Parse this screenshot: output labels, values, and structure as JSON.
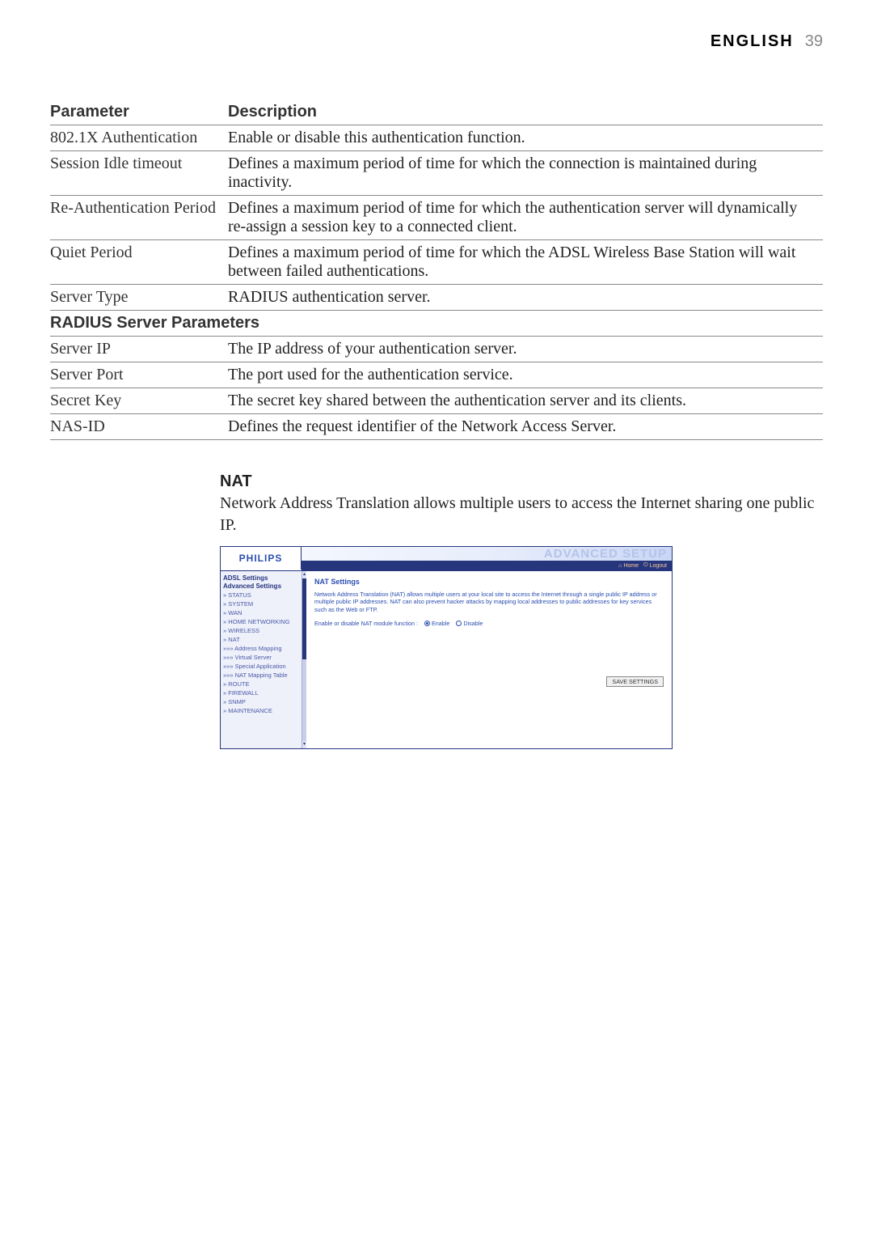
{
  "header": {
    "language": "ENGLISH",
    "page_number": "39"
  },
  "table": {
    "col_parameter": "Parameter",
    "col_description": "Description",
    "rows": [
      {
        "param": "802.1X Authentication",
        "desc": "Enable or disable this authentication function."
      },
      {
        "param": "Session Idle timeout",
        "desc": "Defines a maximum period of time for which the connection is maintained during inactivity."
      },
      {
        "param": "Re-Authentication Period",
        "desc": "Defines a maximum period of time for which the authentication server will dynamically re-assign a session key to a connected client."
      },
      {
        "param": "Quiet Period",
        "desc": "Defines a maximum period of time for which the ADSL Wireless Base Station will wait between failed authentications."
      },
      {
        "param": "Server Type",
        "desc": "RADIUS authentication server."
      }
    ],
    "subheading": "RADIUS Server Parameters",
    "rows2": [
      {
        "param": "Server IP",
        "desc": "The IP address of your authentication server."
      },
      {
        "param": "Server Port",
        "desc": "The port used for the authentication service."
      },
      {
        "param": "Secret Key",
        "desc": "The secret key shared between the authentication server and its clients."
      },
      {
        "param": "NAS-ID",
        "desc": "Defines the request identifier of the Network Access Server."
      }
    ]
  },
  "section": {
    "title": "NAT",
    "body": "Network Address Translation allows multiple users to access the Internet sharing one public IP."
  },
  "screenshot": {
    "logo": "PHILIPS",
    "banner_title": "ADVANCED SETUP",
    "home_link": "Home",
    "logout_link": "Logout",
    "sidebar": {
      "heading1": "ADSL Settings",
      "heading2": "Advanced Settings",
      "items": [
        "» STATUS",
        "» SYSTEM",
        "» WAN",
        "» HOME NETWORKING",
        "» WIRELESS",
        "» NAT",
        "»»» Address Mapping",
        "»»» Virtual Server",
        "»»» Special Application",
        "»»» NAT Mapping Table",
        "» ROUTE",
        "» FIREWALL",
        "» SNMP",
        "» MAINTENANCE"
      ]
    },
    "panel": {
      "title": "NAT Settings",
      "desc": "Network Address Translation (NAT) allows multiple users at your local site to access the Internet through a single public IP address or multiple public IP addresses. NAT can also prevent hacker attacks by mapping local addresses to public addresses for key services such as the Web or FTP.",
      "toggle_label": "Enable or disable NAT module function :",
      "enable_label": "Enable",
      "disable_label": "Disable",
      "save_button": "SAVE SETTINGS"
    },
    "colors": {
      "brand_blue": "#26367d",
      "link_blue": "#2a4db0",
      "accent_orange": "#f7c89b",
      "sidebar_bg": "#eef0fa"
    }
  }
}
